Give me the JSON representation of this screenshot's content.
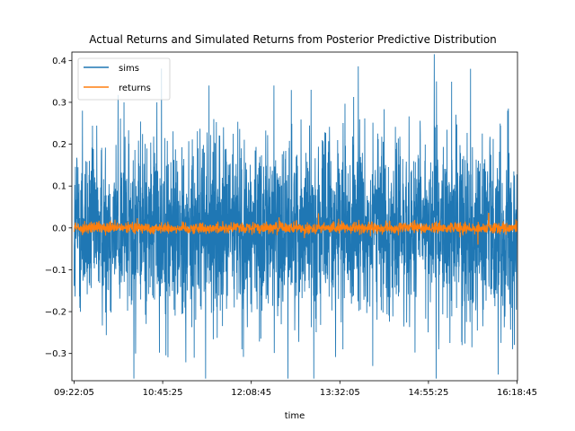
{
  "chart_data": {
    "type": "line",
    "title": "Actual Returns and Simulated Returns from Posterior Predictive Distribution",
    "xlabel": "time",
    "ylabel": "",
    "x_tick_labels": [
      "09:22:05",
      "10:45:25",
      "12:08:45",
      "13:32:05",
      "14:55:25",
      "16:18:45"
    ],
    "x_range": [
      "09:20:00",
      "16:19:10"
    ],
    "ylim": [
      -0.365,
      0.42
    ],
    "y_ticks": [
      -0.3,
      -0.2,
      -0.1,
      0.0,
      0.1,
      0.2,
      0.3,
      0.4
    ],
    "y_tick_labels": [
      "−0.3",
      "−0.2",
      "−0.1",
      "0.0",
      "0.1",
      "0.2",
      "0.3",
      "0.4"
    ],
    "grid": false,
    "legend_position": "top-left",
    "series": [
      {
        "name": "sims",
        "color": "#1f77b4",
        "description_values": {
          "typical_band": [
            -0.12,
            0.12
          ],
          "extreme_points": [
            {
              "x": "09:30:00",
              "y": 0.28
            },
            {
              "x": "10:09:00",
              "y": 0.3
            },
            {
              "x": "10:40:00",
              "y": 0.3
            },
            {
              "x": "11:29:00",
              "y": 0.34
            },
            {
              "x": "12:30:00",
              "y": 0.34
            },
            {
              "x": "13:05:00",
              "y": 0.33
            },
            {
              "x": "15:03:00",
              "y": 0.35
            },
            {
              "x": "15:35:00",
              "y": 0.38
            },
            {
              "x": "16:10:00",
              "y": 0.28
            },
            {
              "x": "10:20:00",
              "y": -0.3
            },
            {
              "x": "11:15:00",
              "y": -0.31
            },
            {
              "x": "12:00:00",
              "y": -0.29
            },
            {
              "x": "13:35:00",
              "y": -0.29
            },
            {
              "x": "14:03:00",
              "y": -0.33
            },
            {
              "x": "15:05:00",
              "y": -0.29
            },
            {
              "x": "15:27:00",
              "y": -0.28
            }
          ]
        }
      },
      {
        "name": "returns",
        "color": "#ff7f0e",
        "description_values": {
          "typical_band": [
            -0.012,
            0.012
          ],
          "extreme_points": [
            {
              "x": "13:12:00",
              "y": 0.035
            },
            {
              "x": "15:42:00",
              "y": -0.04
            },
            {
              "x": "15:52:00",
              "y": 0.035
            }
          ]
        }
      }
    ]
  }
}
